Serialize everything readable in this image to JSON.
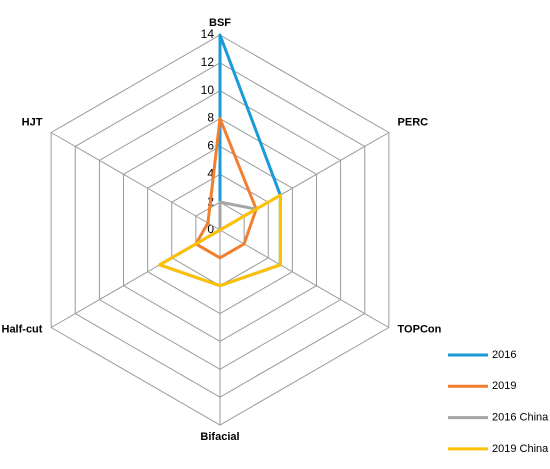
{
  "chart_data": {
    "type": "radar",
    "categories": [
      "BSF",
      "PERC",
      "TOPCon",
      "Bifacial",
      "Half-cut",
      "HJT"
    ],
    "ylim": [
      0,
      14
    ],
    "yticks": [
      0,
      2,
      4,
      6,
      8,
      10,
      12,
      14
    ],
    "grid": true,
    "series": [
      {
        "name": "2016",
        "color": "#1a9bd7",
        "values": [
          14,
          5,
          5,
          4,
          5,
          0
        ]
      },
      {
        "name": "2019",
        "color": "#f07f2f",
        "values": [
          8,
          3,
          2,
          2,
          2,
          1
        ]
      },
      {
        "name": "2016 China",
        "color": "#a5a5a5",
        "values": [
          2,
          3,
          0,
          0,
          0,
          0
        ]
      },
      {
        "name": "2019 China",
        "color": "#ffc000",
        "values": [
          0,
          5,
          5,
          4,
          5,
          0
        ]
      }
    ]
  }
}
